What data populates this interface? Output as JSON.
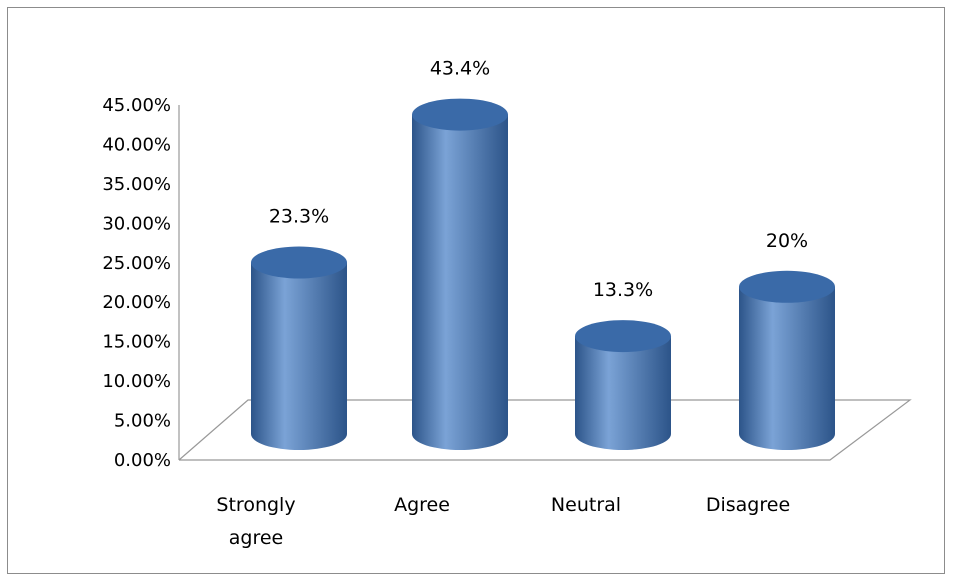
{
  "chart_data": {
    "type": "bar",
    "style": "3d-cylinder",
    "categories": [
      "Strongly agree",
      "Agree",
      "Neutral",
      "Disagree"
    ],
    "category_lines": [
      [
        "Strongly",
        "agree"
      ],
      [
        "Agree"
      ],
      [
        "Neutral"
      ],
      [
        "Disagree"
      ]
    ],
    "values": [
      23.3,
      43.4,
      13.3,
      20
    ],
    "data_labels": [
      "23.3%",
      "43.4%",
      "13.3%",
      "20%"
    ],
    "ylim": [
      0,
      45
    ],
    "yticks": [
      0,
      5,
      10,
      15,
      20,
      25,
      30,
      35,
      40,
      45
    ],
    "ytick_labels": [
      "0.00%",
      "5.00%",
      "10.00%",
      "15.00%",
      "20.00%",
      "25.00%",
      "30.00%",
      "35.00%",
      "40.00%",
      "45.00%"
    ],
    "grid": false,
    "legend": "none",
    "title": "",
    "xlabel": "",
    "ylabel": "",
    "colors": {
      "bar_main": "#4f81bd",
      "bar_dark": "#2c5489",
      "bar_light": "#7ba3d6",
      "bar_top": "#3a6aa8",
      "axis": "#999999"
    }
  }
}
